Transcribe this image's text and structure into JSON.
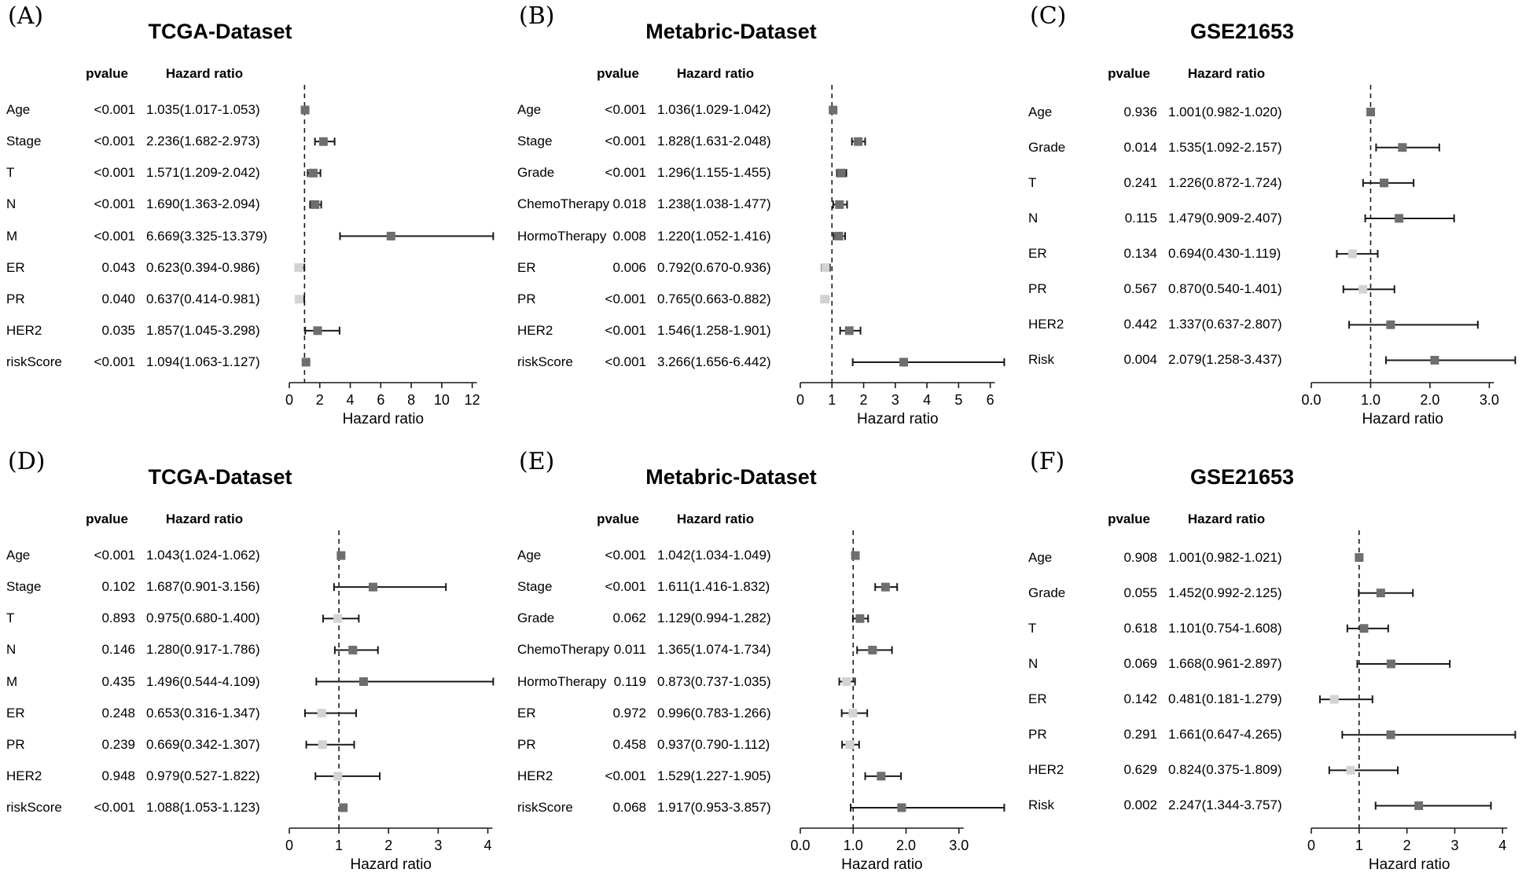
{
  "shared": {
    "col_pvalue": "pvalue",
    "col_hazard_ratio": "Hazard ratio"
  },
  "colors": {
    "background": "#ffffff",
    "text": "#000000",
    "axis": "#1a1a1a",
    "ci_line": "#1a1a1a",
    "reference_line": "#1a1a1a",
    "marker_hr_above_1": "#6e6e6e",
    "marker_hr_below_1": "#d3d3d3"
  },
  "chart_data": [
    {
      "type": "scatter",
      "subtype": "forest-plot",
      "panel_id": "A",
      "letter": "(A)",
      "title": "TCGA-Dataset",
      "xlabel": "Hazard ratio",
      "legend": "none",
      "grid": false,
      "reference_line": 1,
      "xlim": [
        0,
        12
      ],
      "xaxis_ticks": [
        0,
        2,
        4,
        6,
        8,
        10,
        12
      ],
      "xaxis_tick_labels": [
        "0",
        "2",
        "4",
        "6",
        "8",
        "10",
        "12"
      ],
      "rows": [
        {
          "label": "Age",
          "pvalue": "<0.001",
          "hr_text": "1.035(1.017-1.053)",
          "hr": 1.035,
          "lo": 1.017,
          "hi": 1.053
        },
        {
          "label": "Stage",
          "pvalue": "<0.001",
          "hr_text": "2.236(1.682-2.973)",
          "hr": 2.236,
          "lo": 1.682,
          "hi": 2.973
        },
        {
          "label": "T",
          "pvalue": "<0.001",
          "hr_text": "1.571(1.209-2.042)",
          "hr": 1.571,
          "lo": 1.209,
          "hi": 2.042
        },
        {
          "label": "N",
          "pvalue": "<0.001",
          "hr_text": "1.690(1.363-2.094)",
          "hr": 1.69,
          "lo": 1.363,
          "hi": 2.094
        },
        {
          "label": "M",
          "pvalue": "<0.001",
          "hr_text": "6.669(3.325-13.379)",
          "hr": 6.669,
          "lo": 3.325,
          "hi": 13.379
        },
        {
          "label": "ER",
          "pvalue": "0.043",
          "hr_text": "0.623(0.394-0.986)",
          "hr": 0.623,
          "lo": 0.394,
          "hi": 0.986
        },
        {
          "label": "PR",
          "pvalue": "0.040",
          "hr_text": "0.637(0.414-0.981)",
          "hr": 0.637,
          "lo": 0.414,
          "hi": 0.981
        },
        {
          "label": "HER2",
          "pvalue": "0.035",
          "hr_text": "1.857(1.045-3.298)",
          "hr": 1.857,
          "lo": 1.045,
          "hi": 3.298
        },
        {
          "label": "riskScore",
          "pvalue": "<0.001",
          "hr_text": "1.094(1.063-1.127)",
          "hr": 1.094,
          "lo": 1.063,
          "hi": 1.127
        }
      ]
    },
    {
      "type": "scatter",
      "subtype": "forest-plot",
      "panel_id": "B",
      "letter": "(B)",
      "title": "Metabric-Dataset",
      "xlabel": "Hazard ratio",
      "legend": "none",
      "grid": false,
      "reference_line": 1,
      "xlim": [
        0,
        6
      ],
      "xaxis_ticks": [
        0,
        1,
        2,
        3,
        4,
        5,
        6
      ],
      "xaxis_tick_labels": [
        "0",
        "1",
        "2",
        "3",
        "4",
        "5",
        "6"
      ],
      "rows": [
        {
          "label": "Age",
          "pvalue": "<0.001",
          "hr_text": "1.036(1.029-1.042)",
          "hr": 1.036,
          "lo": 1.029,
          "hi": 1.042
        },
        {
          "label": "Stage",
          "pvalue": "<0.001",
          "hr_text": "1.828(1.631-2.048)",
          "hr": 1.828,
          "lo": 1.631,
          "hi": 2.048
        },
        {
          "label": "Grade",
          "pvalue": "<0.001",
          "hr_text": "1.296(1.155-1.455)",
          "hr": 1.296,
          "lo": 1.155,
          "hi": 1.455
        },
        {
          "label": "ChemoTherapy",
          "pvalue": "0.018",
          "hr_text": "1.238(1.038-1.477)",
          "hr": 1.238,
          "lo": 1.038,
          "hi": 1.477
        },
        {
          "label": "HormoTherapy",
          "pvalue": "0.008",
          "hr_text": "1.220(1.052-1.416)",
          "hr": 1.22,
          "lo": 1.052,
          "hi": 1.416
        },
        {
          "label": "ER",
          "pvalue": "0.006",
          "hr_text": "0.792(0.670-0.936)",
          "hr": 0.792,
          "lo": 0.67,
          "hi": 0.936
        },
        {
          "label": "PR",
          "pvalue": "<0.001",
          "hr_text": "0.765(0.663-0.882)",
          "hr": 0.765,
          "lo": 0.663,
          "hi": 0.882
        },
        {
          "label": "HER2",
          "pvalue": "<0.001",
          "hr_text": "1.546(1.258-1.901)",
          "hr": 1.546,
          "lo": 1.258,
          "hi": 1.901
        },
        {
          "label": "riskScore",
          "pvalue": "<0.001",
          "hr_text": "3.266(1.656-6.442)",
          "hr": 3.266,
          "lo": 1.656,
          "hi": 6.442
        }
      ]
    },
    {
      "type": "scatter",
      "subtype": "forest-plot",
      "panel_id": "C",
      "letter": "(C)",
      "title": "GSE21653",
      "xlabel": "Hazard ratio",
      "legend": "none",
      "grid": false,
      "reference_line": 1,
      "xlim": [
        0,
        3
      ],
      "xaxis_ticks": [
        0,
        1,
        2,
        3
      ],
      "xaxis_tick_labels": [
        "0.0",
        "1.0",
        "2.0",
        "3.0"
      ],
      "rows": [
        {
          "label": "Age",
          "pvalue": "0.936",
          "hr_text": "1.001(0.982-1.020)",
          "hr": 1.001,
          "lo": 0.982,
          "hi": 1.02
        },
        {
          "label": "Grade",
          "pvalue": "0.014",
          "hr_text": "1.535(1.092-2.157)",
          "hr": 1.535,
          "lo": 1.092,
          "hi": 2.157
        },
        {
          "label": "T",
          "pvalue": "0.241",
          "hr_text": "1.226(0.872-1.724)",
          "hr": 1.226,
          "lo": 0.872,
          "hi": 1.724
        },
        {
          "label": "N",
          "pvalue": "0.115",
          "hr_text": "1.479(0.909-2.407)",
          "hr": 1.479,
          "lo": 0.909,
          "hi": 2.407
        },
        {
          "label": "ER",
          "pvalue": "0.134",
          "hr_text": "0.694(0.430-1.119)",
          "hr": 0.694,
          "lo": 0.43,
          "hi": 1.119
        },
        {
          "label": "PR",
          "pvalue": "0.567",
          "hr_text": "0.870(0.540-1.401)",
          "hr": 0.87,
          "lo": 0.54,
          "hi": 1.401
        },
        {
          "label": "HER2",
          "pvalue": "0.442",
          "hr_text": "1.337(0.637-2.807)",
          "hr": 1.337,
          "lo": 0.637,
          "hi": 2.807
        },
        {
          "label": "Risk",
          "pvalue": "0.004",
          "hr_text": "2.079(1.258-3.437)",
          "hr": 2.079,
          "lo": 1.258,
          "hi": 3.437
        }
      ]
    },
    {
      "type": "scatter",
      "subtype": "forest-plot",
      "panel_id": "D",
      "letter": "(D)",
      "title": "TCGA-Dataset",
      "xlabel": "Hazard ratio",
      "legend": "none",
      "grid": false,
      "reference_line": 1,
      "xlim": [
        0,
        4
      ],
      "xaxis_ticks": [
        0,
        1,
        2,
        3,
        4
      ],
      "xaxis_tick_labels": [
        "0",
        "1",
        "2",
        "3",
        "4"
      ],
      "rows": [
        {
          "label": "Age",
          "pvalue": "<0.001",
          "hr_text": "1.043(1.024-1.062)",
          "hr": 1.043,
          "lo": 1.024,
          "hi": 1.062
        },
        {
          "label": "Stage",
          "pvalue": "0.102",
          "hr_text": "1.687(0.901-3.156)",
          "hr": 1.687,
          "lo": 0.901,
          "hi": 3.156
        },
        {
          "label": "T",
          "pvalue": "0.893",
          "hr_text": "0.975(0.680-1.400)",
          "hr": 0.975,
          "lo": 0.68,
          "hi": 1.4
        },
        {
          "label": "N",
          "pvalue": "0.146",
          "hr_text": "1.280(0.917-1.786)",
          "hr": 1.28,
          "lo": 0.917,
          "hi": 1.786
        },
        {
          "label": "M",
          "pvalue": "0.435",
          "hr_text": "1.496(0.544-4.109)",
          "hr": 1.496,
          "lo": 0.544,
          "hi": 4.109
        },
        {
          "label": "ER",
          "pvalue": "0.248",
          "hr_text": "0.653(0.316-1.347)",
          "hr": 0.653,
          "lo": 0.316,
          "hi": 1.347
        },
        {
          "label": "PR",
          "pvalue": "0.239",
          "hr_text": "0.669(0.342-1.307)",
          "hr": 0.669,
          "lo": 0.342,
          "hi": 1.307
        },
        {
          "label": "HER2",
          "pvalue": "0.948",
          "hr_text": "0.979(0.527-1.822)",
          "hr": 0.979,
          "lo": 0.527,
          "hi": 1.822
        },
        {
          "label": "riskScore",
          "pvalue": "<0.001",
          "hr_text": "1.088(1.053-1.123)",
          "hr": 1.088,
          "lo": 1.053,
          "hi": 1.123
        }
      ]
    },
    {
      "type": "scatter",
      "subtype": "forest-plot",
      "panel_id": "E",
      "letter": "(E)",
      "title": "Metabric-Dataset",
      "xlabel": "Hazard ratio",
      "legend": "none",
      "grid": false,
      "reference_line": 1,
      "xlim": [
        0,
        3
      ],
      "xaxis_ticks": [
        0,
        1,
        2,
        3
      ],
      "xaxis_tick_labels": [
        "0.0",
        "1.0",
        "2.0",
        "3.0"
      ],
      "rows": [
        {
          "label": "Age",
          "pvalue": "<0.001",
          "hr_text": "1.042(1.034-1.049)",
          "hr": 1.042,
          "lo": 1.034,
          "hi": 1.049
        },
        {
          "label": "Stage",
          "pvalue": "<0.001",
          "hr_text": "1.611(1.416-1.832)",
          "hr": 1.611,
          "lo": 1.416,
          "hi": 1.832
        },
        {
          "label": "Grade",
          "pvalue": "0.062",
          "hr_text": "1.129(0.994-1.282)",
          "hr": 1.129,
          "lo": 0.994,
          "hi": 1.282
        },
        {
          "label": "ChemoTherapy",
          "pvalue": "0.011",
          "hr_text": "1.365(1.074-1.734)",
          "hr": 1.365,
          "lo": 1.074,
          "hi": 1.734
        },
        {
          "label": "HormoTherapy",
          "pvalue": "0.119",
          "hr_text": "0.873(0.737-1.035)",
          "hr": 0.873,
          "lo": 0.737,
          "hi": 1.035
        },
        {
          "label": "ER",
          "pvalue": "0.972",
          "hr_text": "0.996(0.783-1.266)",
          "hr": 0.996,
          "lo": 0.783,
          "hi": 1.266
        },
        {
          "label": "PR",
          "pvalue": "0.458",
          "hr_text": "0.937(0.790-1.112)",
          "hr": 0.937,
          "lo": 0.79,
          "hi": 1.112
        },
        {
          "label": "HER2",
          "pvalue": "<0.001",
          "hr_text": "1.529(1.227-1.905)",
          "hr": 1.529,
          "lo": 1.227,
          "hi": 1.905
        },
        {
          "label": "riskScore",
          "pvalue": "0.068",
          "hr_text": "1.917(0.953-3.857)",
          "hr": 1.917,
          "lo": 0.953,
          "hi": 3.857
        }
      ]
    },
    {
      "type": "scatter",
      "subtype": "forest-plot",
      "panel_id": "F",
      "letter": "(F)",
      "title": "GSE21653",
      "xlabel": "Hazard ratio",
      "legend": "none",
      "grid": false,
      "reference_line": 1,
      "xlim": [
        0,
        4
      ],
      "xaxis_ticks": [
        0,
        1,
        2,
        3,
        4
      ],
      "xaxis_tick_labels": [
        "0",
        "1",
        "2",
        "3",
        "4"
      ],
      "rows": [
        {
          "label": "Age",
          "pvalue": "0.908",
          "hr_text": "1.001(0.982-1.021)",
          "hr": 1.001,
          "lo": 0.982,
          "hi": 1.021
        },
        {
          "label": "Grade",
          "pvalue": "0.055",
          "hr_text": "1.452(0.992-2.125)",
          "hr": 1.452,
          "lo": 0.992,
          "hi": 2.125
        },
        {
          "label": "T",
          "pvalue": "0.618",
          "hr_text": "1.101(0.754-1.608)",
          "hr": 1.101,
          "lo": 0.754,
          "hi": 1.608
        },
        {
          "label": "N",
          "pvalue": "0.069",
          "hr_text": "1.668(0.961-2.897)",
          "hr": 1.668,
          "lo": 0.961,
          "hi": 2.897
        },
        {
          "label": "ER",
          "pvalue": "0.142",
          "hr_text": "0.481(0.181-1.279)",
          "hr": 0.481,
          "lo": 0.181,
          "hi": 1.279
        },
        {
          "label": "PR",
          "pvalue": "0.291",
          "hr_text": "1.661(0.647-4.265)",
          "hr": 1.661,
          "lo": 0.647,
          "hi": 4.265
        },
        {
          "label": "HER2",
          "pvalue": "0.629",
          "hr_text": "0.824(0.375-1.809)",
          "hr": 0.824,
          "lo": 0.375,
          "hi": 1.809
        },
        {
          "label": "Risk",
          "pvalue": "0.002",
          "hr_text": "2.247(1.344-3.757)",
          "hr": 2.247,
          "lo": 1.344,
          "hi": 3.757
        }
      ]
    }
  ]
}
